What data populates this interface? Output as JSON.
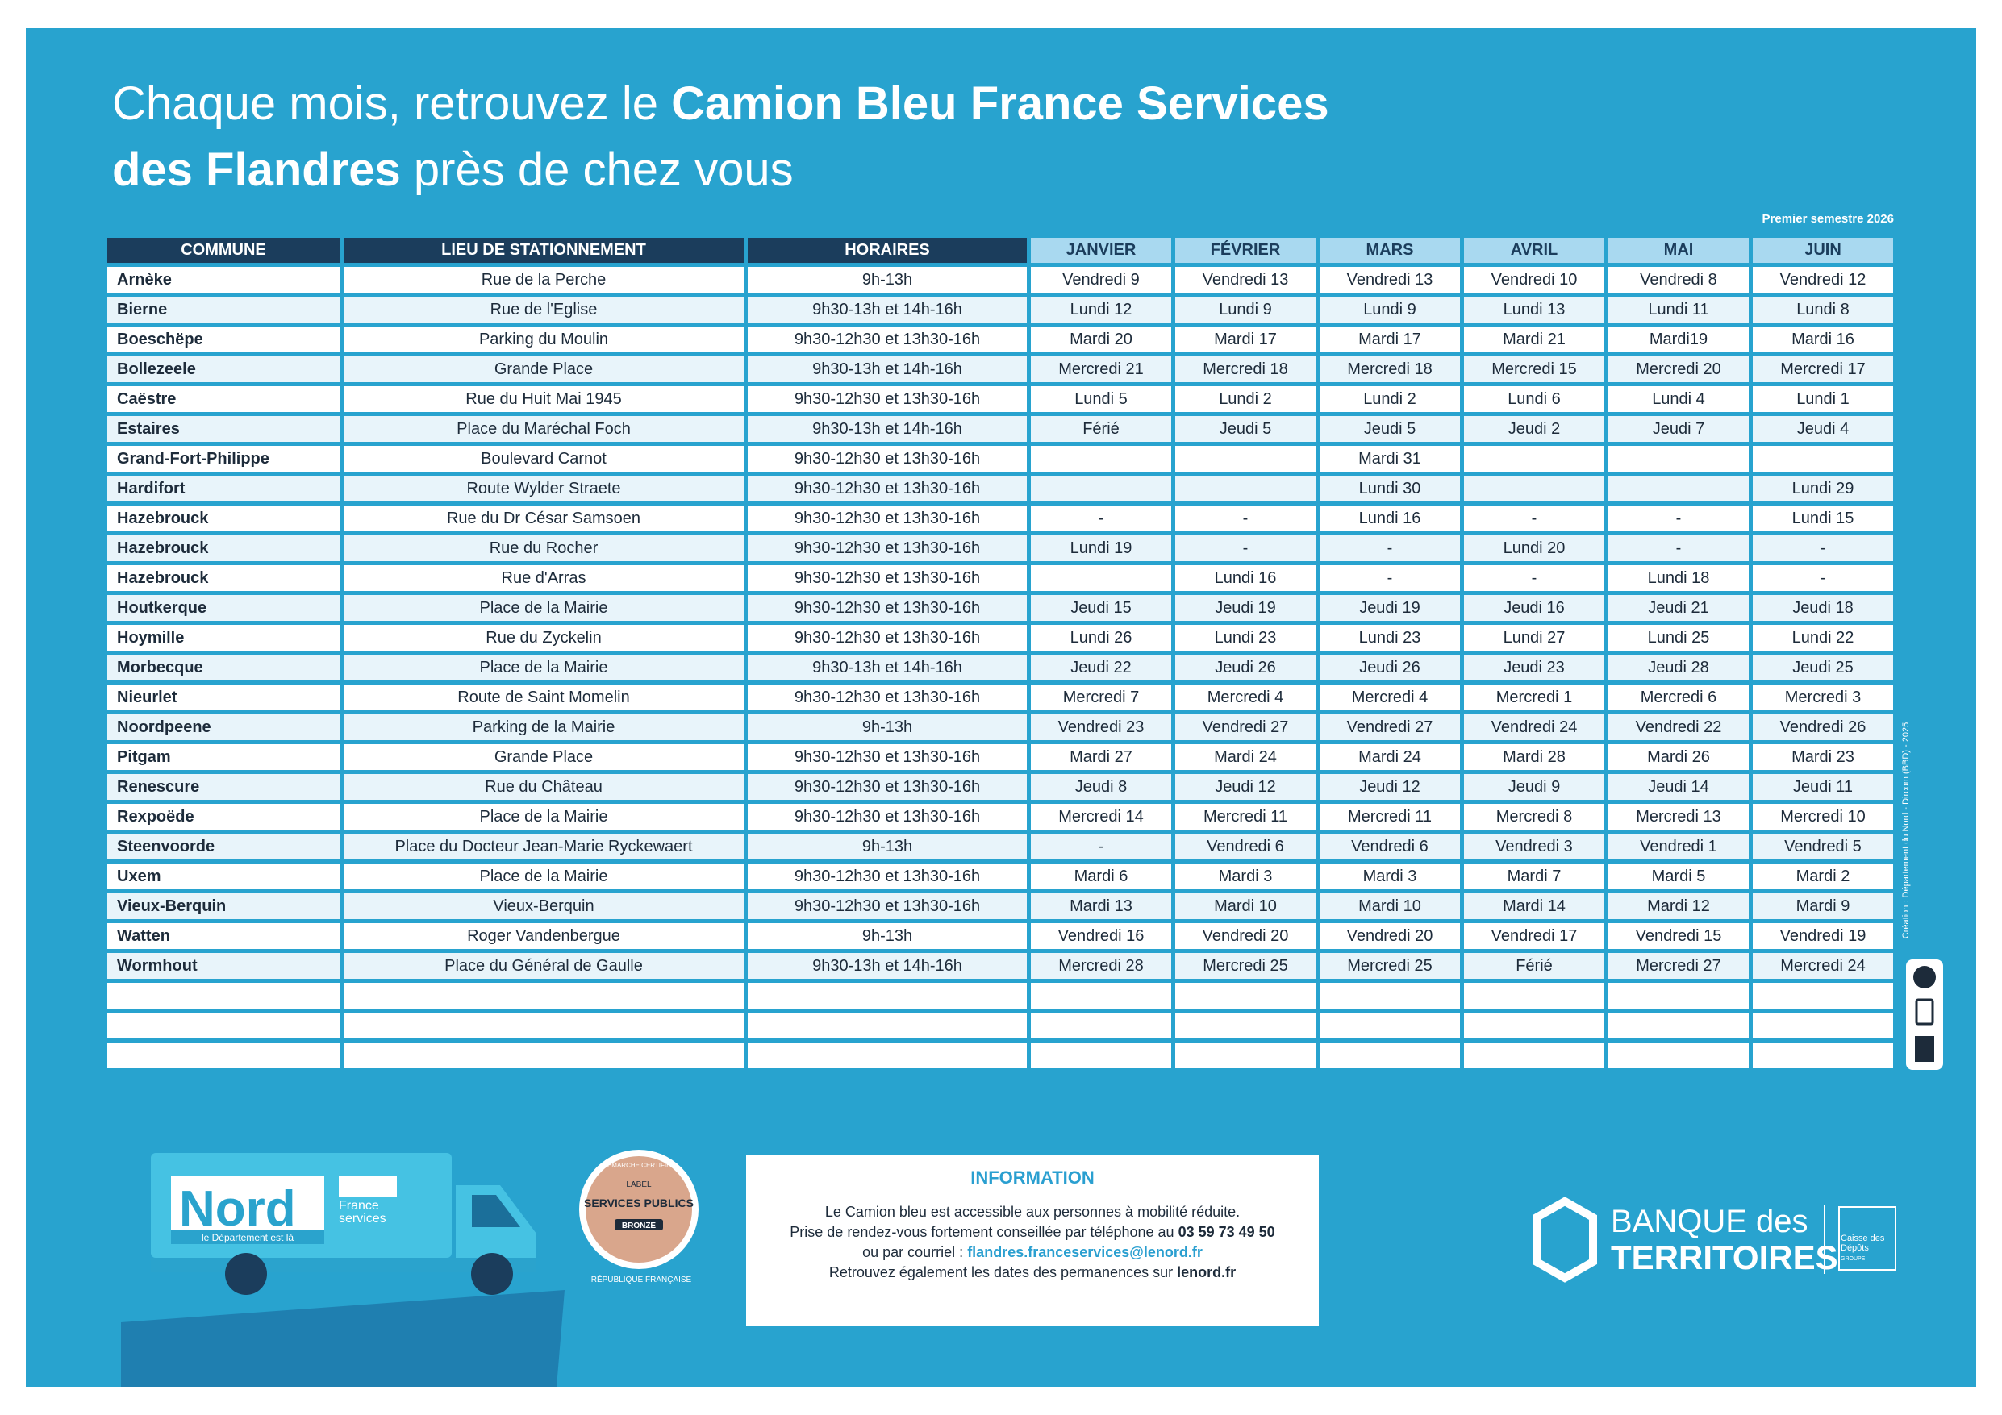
{
  "header": {
    "title_line1": "Chaque mois, retrouvez le ",
    "title_line1_bold": "Camion Bleu France Services",
    "title_line2_bold": "des Flandres",
    "title_line2": " près de chez vous",
    "period": "Premier semestre 2026"
  },
  "table": {
    "columns": [
      "COMMUNE",
      "LIEU DE STATIONNEMENT",
      "HORAIRES",
      "JANVIER",
      "FÉVRIER",
      "MARS",
      "AVRIL",
      "MAI",
      "JUIN"
    ],
    "rows": [
      [
        "Arnèke",
        "Rue de la Perche",
        "9h-13h",
        "Vendredi 9",
        "Vendredi 13",
        "Vendredi 13",
        "Vendredi 10",
        "Vendredi 8",
        "Vendredi 12"
      ],
      [
        "Bierne",
        "Rue de l'Eglise",
        "9h30-13h et 14h-16h",
        "Lundi 12",
        "Lundi 9",
        "Lundi 9",
        "Lundi 13",
        "Lundi 11",
        "Lundi 8"
      ],
      [
        "Boeschëpe",
        "Parking du Moulin",
        "9h30-12h30 et 13h30-16h",
        "Mardi 20",
        "Mardi 17",
        "Mardi 17",
        "Mardi 21",
        "Mardi19",
        "Mardi 16"
      ],
      [
        "Bollezeele",
        "Grande Place",
        "9h30-13h et 14h-16h",
        "Mercredi 21",
        "Mercredi 18",
        "Mercredi 18",
        "Mercredi 15",
        "Mercredi 20",
        "Mercredi 17"
      ],
      [
        "Caëstre",
        "Rue du Huit Mai 1945",
        "9h30-12h30 et 13h30-16h",
        "Lundi 5",
        "Lundi 2",
        "Lundi 2",
        "Lundi 6",
        "Lundi 4",
        "Lundi 1"
      ],
      [
        "Estaires",
        "Place du Maréchal Foch",
        "9h30-13h et 14h-16h",
        "Férié",
        "Jeudi 5",
        "Jeudi 5",
        "Jeudi 2",
        "Jeudi 7",
        "Jeudi 4"
      ],
      [
        "Grand-Fort-Philippe",
        "Boulevard Carnot",
        "9h30-12h30 et 13h30-16h",
        null,
        null,
        "Mardi 31",
        null,
        null,
        null
      ],
      [
        "Hardifort",
        "Route Wylder Straete",
        "9h30-12h30 et 13h30-16h",
        null,
        null,
        "Lundi 30",
        null,
        null,
        "Lundi 29"
      ],
      [
        "Hazebrouck",
        "Rue du Dr César Samsoen",
        "9h30-12h30 et 13h30-16h",
        "-",
        "-",
        "Lundi 16",
        "-",
        "-",
        "Lundi 15"
      ],
      [
        "Hazebrouck",
        "Rue du Rocher",
        "9h30-12h30 et 13h30-16h",
        "Lundi 19",
        "-",
        "-",
        "Lundi 20",
        "-",
        "-"
      ],
      [
        "Hazebrouck",
        "Rue d'Arras",
        "9h30-12h30 et 13h30-16h",
        null,
        "Lundi 16",
        "-",
        "-",
        "Lundi 18",
        "-"
      ],
      [
        "Houtkerque",
        "Place de la Mairie",
        "9h30-12h30 et 13h30-16h",
        "Jeudi 15",
        "Jeudi 19",
        "Jeudi 19",
        "Jeudi 16",
        "Jeudi 21",
        "Jeudi 18"
      ],
      [
        "Hoymille",
        "Rue du Zyckelin",
        "9h30-12h30 et 13h30-16h",
        "Lundi 26",
        "Lundi 23",
        "Lundi 23",
        "Lundi 27",
        "Lundi 25",
        "Lundi 22"
      ],
      [
        "Morbecque",
        "Place de la Mairie",
        "9h30-13h et 14h-16h",
        "Jeudi 22",
        "Jeudi 26",
        "Jeudi 26",
        "Jeudi 23",
        "Jeudi 28",
        "Jeudi 25"
      ],
      [
        "Nieurlet",
        "Route de Saint Momelin",
        "9h30-12h30 et 13h30-16h",
        "Mercredi 7",
        "Mercredi 4",
        "Mercredi 4",
        "Mercredi 1",
        "Mercredi 6",
        "Mercredi 3"
      ],
      [
        "Noordpeene",
        "Parking de la Mairie",
        "9h-13h",
        "Vendredi 23",
        "Vendredi 27",
        "Vendredi 27",
        "Vendredi 24",
        "Vendredi 22",
        "Vendredi 26"
      ],
      [
        "Pitgam",
        "Grande Place",
        "9h30-12h30 et 13h30-16h",
        "Mardi 27",
        "Mardi 24",
        "Mardi 24",
        "Mardi 28",
        "Mardi 26",
        "Mardi 23"
      ],
      [
        "Renescure",
        "Rue du Château",
        "9h30-12h30 et 13h30-16h",
        "Jeudi 8",
        "Jeudi 12",
        "Jeudi 12",
        "Jeudi 9",
        "Jeudi 14",
        "Jeudi 11"
      ],
      [
        "Rexpoëde",
        "Place de la Mairie",
        "9h30-12h30 et 13h30-16h",
        "Mercredi 14",
        "Mercredi 11",
        "Mercredi 11",
        "Mercredi 8",
        "Mercredi 13",
        "Mercredi 10"
      ],
      [
        "Steenvoorde",
        "Place du Docteur Jean-Marie Ryckewaert",
        "9h-13h",
        "-",
        "Vendredi 6",
        "Vendredi 6",
        "Vendredi 3",
        "Vendredi 1",
        "Vendredi 5"
      ],
      [
        "Uxem",
        "Place de la Mairie",
        "9h30-12h30 et 13h30-16h",
        "Mardi 6",
        "Mardi 3",
        "Mardi 3",
        "Mardi 7",
        "Mardi 5",
        "Mardi 2"
      ],
      [
        "Vieux-Berquin",
        "Vieux-Berquin",
        "9h30-12h30 et 13h30-16h",
        "Mardi 13",
        "Mardi 10",
        "Mardi 10",
        "Mardi 14",
        "Mardi 12",
        "Mardi 9"
      ],
      [
        "Watten",
        "Roger Vandenbergue",
        "9h-13h",
        "Vendredi 16",
        "Vendredi 20",
        "Vendredi 20",
        "Vendredi 17",
        "Vendredi 15",
        "Vendredi 19"
      ],
      [
        "Wormhout",
        "Place du Général de Gaulle",
        "9h30-13h et 14h-16h",
        "Mercredi 28",
        "Mercredi 25",
        "Mercredi 25",
        "Férié",
        "Mercredi 27",
        "Mercredi 24"
      ]
    ]
  },
  "information": {
    "title": "INFORMATION",
    "line1": "Le Camion bleu est accessible aux personnes à mobilité réduite.",
    "line2": "Prise de rendez-vous fortement conseillée par téléphone au ",
    "phone": "03 59 73 49 50",
    "line3": "ou par courriel : ",
    "email": "flandres.franceservices@lenord.fr",
    "line4": "Retrouvez également les dates des permanences sur ",
    "website": "lenord.fr"
  },
  "truck": {
    "nord": "Nord",
    "tagline": "le Département est là",
    "france_services": "France services"
  },
  "badge": {
    "top": "DÉMARCHE CERTIFIÉE",
    "label": "LABEL",
    "name": "SERVICES PUBLICS",
    "level": "BRONZE",
    "republique": "RÉPUBLIQUE FRANÇAISE"
  },
  "partner": {
    "line1": "BANQUE des",
    "line2": "TERRITOIRES",
    "caisse": "Caisse des Dépôts",
    "groupe": "GROUPE"
  },
  "credit": "Création : Département du Nord - Dircom (BBD) - 2025"
}
